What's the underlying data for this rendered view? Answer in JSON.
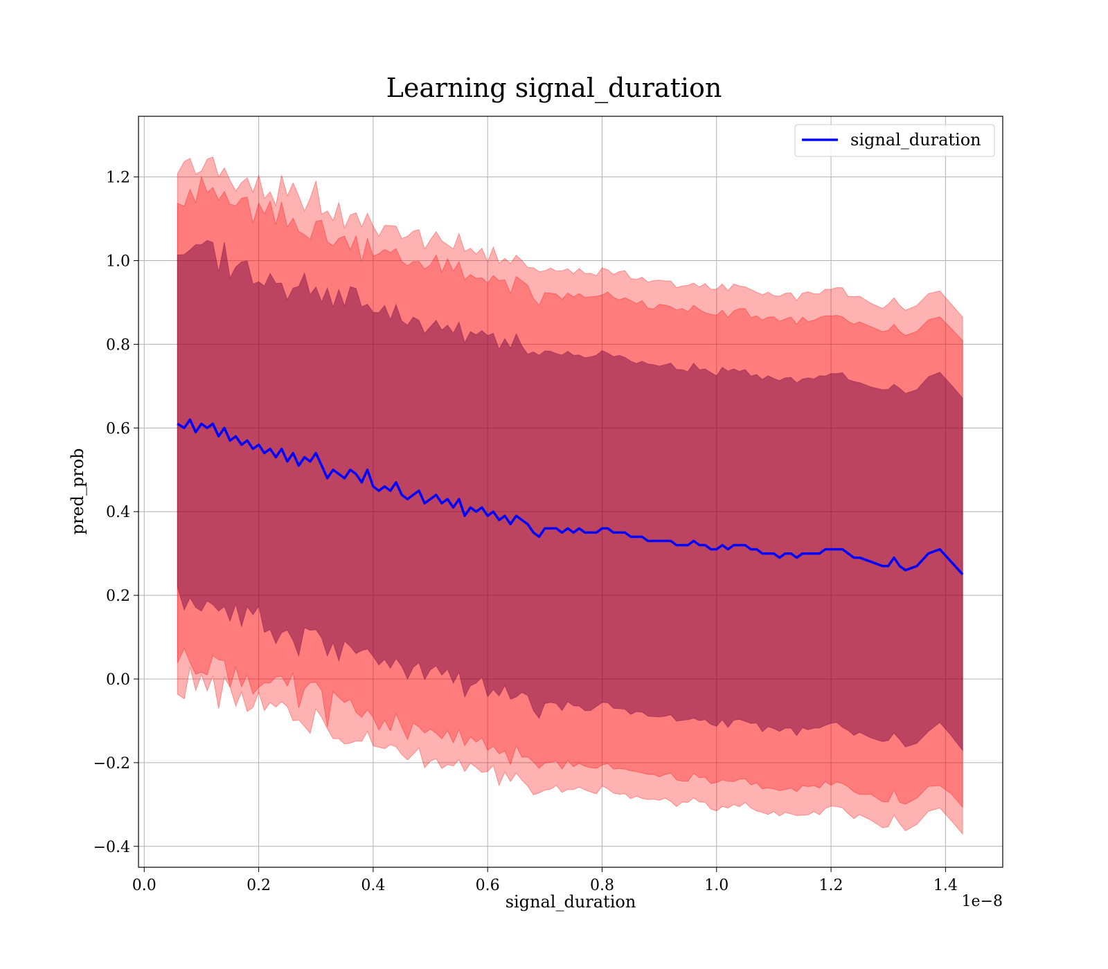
{
  "chart_data": {
    "type": "line",
    "title": "Learning signal_duration",
    "xlabel": "signal_duration",
    "ylabel": "pred_prob",
    "x_offset_text": "1e−8",
    "x_scale": 1e-08,
    "xlim": [
      -0.01,
      1.5
    ],
    "ylim": [
      -0.45,
      1.345
    ],
    "grid": true,
    "legend_position": "upper right",
    "x_ticks": [
      0.0,
      0.2,
      0.4,
      0.6,
      0.8,
      1.0,
      1.2,
      1.4
    ],
    "x_tick_labels": [
      "0.0",
      "0.2",
      "0.4",
      "0.6",
      "0.8",
      "1.0",
      "1.2",
      "1.4"
    ],
    "y_ticks": [
      -0.4,
      -0.2,
      0.0,
      0.2,
      0.4,
      0.6,
      0.8,
      1.0,
      1.2
    ],
    "y_tick_labels": [
      "−0.4",
      "−0.2",
      "0.0",
      "0.2",
      "0.4",
      "0.6",
      "0.8",
      "1.0",
      "1.2"
    ],
    "colors": {
      "line": "#0000ff",
      "band_outer": "#ff0000",
      "band_middle": "#ff0000",
      "band_inner": "#6b0040"
    },
    "series": [
      {
        "name": "signal_duration",
        "x": [
          0.058,
          0.07,
          0.08,
          0.09,
          0.1,
          0.11,
          0.12,
          0.13,
          0.14,
          0.15,
          0.16,
          0.17,
          0.18,
          0.19,
          0.2,
          0.21,
          0.22,
          0.23,
          0.24,
          0.25,
          0.26,
          0.27,
          0.28,
          0.29,
          0.3,
          0.31,
          0.32,
          0.33,
          0.34,
          0.35,
          0.36,
          0.37,
          0.38,
          0.39,
          0.4,
          0.41,
          0.42,
          0.43,
          0.44,
          0.45,
          0.46,
          0.47,
          0.48,
          0.49,
          0.5,
          0.51,
          0.52,
          0.53,
          0.54,
          0.55,
          0.56,
          0.57,
          0.58,
          0.59,
          0.6,
          0.61,
          0.62,
          0.63,
          0.64,
          0.65,
          0.66,
          0.67,
          0.68,
          0.69,
          0.7,
          0.71,
          0.72,
          0.73,
          0.74,
          0.75,
          0.76,
          0.77,
          0.78,
          0.79,
          0.8,
          0.81,
          0.82,
          0.83,
          0.84,
          0.85,
          0.86,
          0.87,
          0.88,
          0.89,
          0.9,
          0.91,
          0.92,
          0.93,
          0.94,
          0.95,
          0.96,
          0.97,
          0.98,
          0.99,
          1.0,
          1.01,
          1.02,
          1.03,
          1.04,
          1.05,
          1.06,
          1.07,
          1.08,
          1.09,
          1.1,
          1.11,
          1.12,
          1.13,
          1.14,
          1.15,
          1.16,
          1.17,
          1.18,
          1.19,
          1.2,
          1.21,
          1.22,
          1.23,
          1.24,
          1.25,
          1.27,
          1.29,
          1.3,
          1.31,
          1.32,
          1.33,
          1.35,
          1.37,
          1.39,
          1.41,
          1.43
        ],
        "values": [
          0.61,
          0.6,
          0.62,
          0.59,
          0.61,
          0.6,
          0.61,
          0.58,
          0.6,
          0.57,
          0.58,
          0.56,
          0.57,
          0.55,
          0.56,
          0.54,
          0.55,
          0.53,
          0.55,
          0.52,
          0.54,
          0.51,
          0.53,
          0.52,
          0.54,
          0.51,
          0.48,
          0.5,
          0.49,
          0.48,
          0.5,
          0.49,
          0.47,
          0.5,
          0.46,
          0.45,
          0.46,
          0.45,
          0.47,
          0.44,
          0.43,
          0.44,
          0.45,
          0.42,
          0.43,
          0.44,
          0.42,
          0.43,
          0.41,
          0.43,
          0.39,
          0.41,
          0.4,
          0.41,
          0.39,
          0.4,
          0.38,
          0.39,
          0.37,
          0.39,
          0.38,
          0.37,
          0.35,
          0.34,
          0.36,
          0.36,
          0.36,
          0.35,
          0.36,
          0.35,
          0.36,
          0.35,
          0.35,
          0.35,
          0.36,
          0.36,
          0.35,
          0.35,
          0.35,
          0.34,
          0.34,
          0.34,
          0.33,
          0.33,
          0.33,
          0.33,
          0.33,
          0.32,
          0.32,
          0.32,
          0.33,
          0.32,
          0.32,
          0.31,
          0.31,
          0.32,
          0.31,
          0.32,
          0.32,
          0.32,
          0.31,
          0.31,
          0.3,
          0.3,
          0.3,
          0.29,
          0.3,
          0.3,
          0.29,
          0.3,
          0.3,
          0.3,
          0.3,
          0.31,
          0.31,
          0.31,
          0.31,
          0.3,
          0.29,
          0.29,
          0.28,
          0.27,
          0.27,
          0.29,
          0.27,
          0.26,
          0.27,
          0.3,
          0.31,
          0.28,
          0.25
        ],
        "band_1std_halfwidth": 0.42,
        "band_2std_halfwidth_approx": 0.56,
        "band_3std_halfwidth_approx": 0.62
      }
    ]
  }
}
